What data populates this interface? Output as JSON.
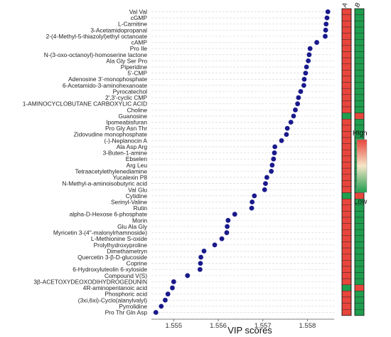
{
  "chart_data": {
    "type": "scatter",
    "xlabel": "VIP scores",
    "x_ticks": [
      "1.555",
      "1.556",
      "1.557",
      "1.558"
    ],
    "x_tick_values": [
      1.555,
      1.556,
      1.557,
      1.558
    ],
    "xlim": [
      1.5545,
      1.5586
    ],
    "grid": "horizontal dashed",
    "point_color": "#1a1a8c",
    "points": [
      {
        "label": "Val Val",
        "x": 1.55846
      },
      {
        "label": "cGMP",
        "x": 1.55844
      },
      {
        "label": "L-Carnitine",
        "x": 1.55842
      },
      {
        "label": "3-Acetamidopropanal",
        "x": 1.55841
      },
      {
        "label": "2-(4-Methyl-5-thiazolyl)ethyl octanoate",
        "x": 1.5584
      },
      {
        "label": "cAMP",
        "x": 1.55821
      },
      {
        "label": "Pro Ile",
        "x": 1.55806
      },
      {
        "label": "N-(3-oxo-octanoyl)-homoserine lactone",
        "x": 1.55804
      },
      {
        "label": "Ala Gly Ser Pro",
        "x": 1.55802
      },
      {
        "label": "Piperidine",
        "x": 1.55798
      },
      {
        "label": "5'-CMP",
        "x": 1.55796
      },
      {
        "label": "Adenosine 3'-monophosphate",
        "x": 1.55793
      },
      {
        "label": "6-Acetamido-3-aminohexanoate",
        "x": 1.55792
      },
      {
        "label": "Pyrocatechol",
        "x": 1.55785
      },
      {
        "label": "2',3'-cyclic CMP",
        "x": 1.5578
      },
      {
        "label": "1-AMINOCYCLOBUTANE CARBOXYLIC ACID",
        "x": 1.55778
      },
      {
        "label": "Choline",
        "x": 1.55773
      },
      {
        "label": "Guanosine",
        "x": 1.55769
      },
      {
        "label": "Ipomeabisfuran",
        "x": 1.55763
      },
      {
        "label": "Pro Gly Asn Thr",
        "x": 1.55755
      },
      {
        "label": "Zidovudine monophosphate",
        "x": 1.55753
      },
      {
        "label": "(-)-Neplanocin A",
        "x": 1.55742
      },
      {
        "label": "Ala Asp Arg",
        "x": 1.55727
      },
      {
        "label": "3-Buten-1-amine",
        "x": 1.55726
      },
      {
        "label": "Ebselen",
        "x": 1.55724
      },
      {
        "label": "Arg Leu",
        "x": 1.55721
      },
      {
        "label": "Tetraacetylethylenediamine",
        "x": 1.55719
      },
      {
        "label": "Yucalexin P8",
        "x": 1.55709
      },
      {
        "label": "N-Methyl-a-aminoisobutyric acid",
        "x": 1.55706
      },
      {
        "label": "Val Glu",
        "x": 1.55704
      },
      {
        "label": "Cytidine",
        "x": 1.55681
      },
      {
        "label": "Serinyl-Valine",
        "x": 1.55676
      },
      {
        "label": "Rutin",
        "x": 1.55675
      },
      {
        "label": "alpha-D-Hexose 6-phosphate",
        "x": 1.55637
      },
      {
        "label": "Morin",
        "x": 1.55622
      },
      {
        "label": "Glu Ala Gly",
        "x": 1.5562
      },
      {
        "label": "Myricetin 3-(4''-malonylrhamnoside)",
        "x": 1.55619
      },
      {
        "label": "L-Methionine S-oxide",
        "x": 1.55608
      },
      {
        "label": "Prolylhydroxyproline",
        "x": 1.55592
      },
      {
        "label": "Dimethametryn",
        "x": 1.55568
      },
      {
        "label": "Quercetin 3-β-D-glucoside",
        "x": 1.55561
      },
      {
        "label": "Coprine",
        "x": 1.5556
      },
      {
        "label": "6-Hydroxyluteolin 6-xyloside",
        "x": 1.55559
      },
      {
        "label": "Compound V(S)",
        "x": 1.55531
      },
      {
        "label": "3β-ACETOXYDEOXODIHYDROGEDUNIN",
        "x": 1.555
      },
      {
        "label": "4R-aminopentanoic acid",
        "x": 1.55497
      },
      {
        "label": "Phosphoric acid",
        "x": 1.55487
      },
      {
        "label": "(3xi,6xi)-Cyclo(alanylvalyl)",
        "x": 1.55481
      },
      {
        "label": "Pyrrolidine",
        "x": 1.55472
      },
      {
        "label": "Pro Thr Gln Asp",
        "x": 1.5546
      }
    ],
    "heatmap": {
      "columns": [
        "A",
        "B"
      ],
      "levels": {
        "A": [
          "H",
          "H",
          "H",
          "H",
          "H",
          "H",
          "H",
          "H",
          "H",
          "H",
          "H",
          "H",
          "H",
          "H",
          "H",
          "H",
          "H",
          "L",
          "H",
          "H",
          "H",
          "H",
          "H",
          "H",
          "H",
          "H",
          "H",
          "H",
          "H",
          "H",
          "L",
          "H",
          "H",
          "H",
          "H",
          "H",
          "H",
          "H",
          "H",
          "H",
          "H",
          "H",
          "H",
          "H",
          "H",
          "L",
          "H",
          "H",
          "H",
          "H"
        ],
        "B": [
          "L",
          "L",
          "L",
          "L",
          "L",
          "L",
          "L",
          "L",
          "L",
          "L",
          "L",
          "L",
          "L",
          "L",
          "L",
          "L",
          "L",
          "H",
          "L",
          "L",
          "L",
          "L",
          "L",
          "L",
          "L",
          "L",
          "L",
          "L",
          "L",
          "L",
          "H",
          "L",
          "L",
          "L",
          "L",
          "L",
          "L",
          "L",
          "L",
          "L",
          "L",
          "L",
          "L",
          "L",
          "L",
          "H",
          "L",
          "L",
          "L",
          "L"
        ]
      },
      "high_color": "#e8453c",
      "low_color": "#1f9e4f"
    },
    "legend": {
      "high_label": "High",
      "low_label": "Low",
      "placement": "right"
    }
  }
}
